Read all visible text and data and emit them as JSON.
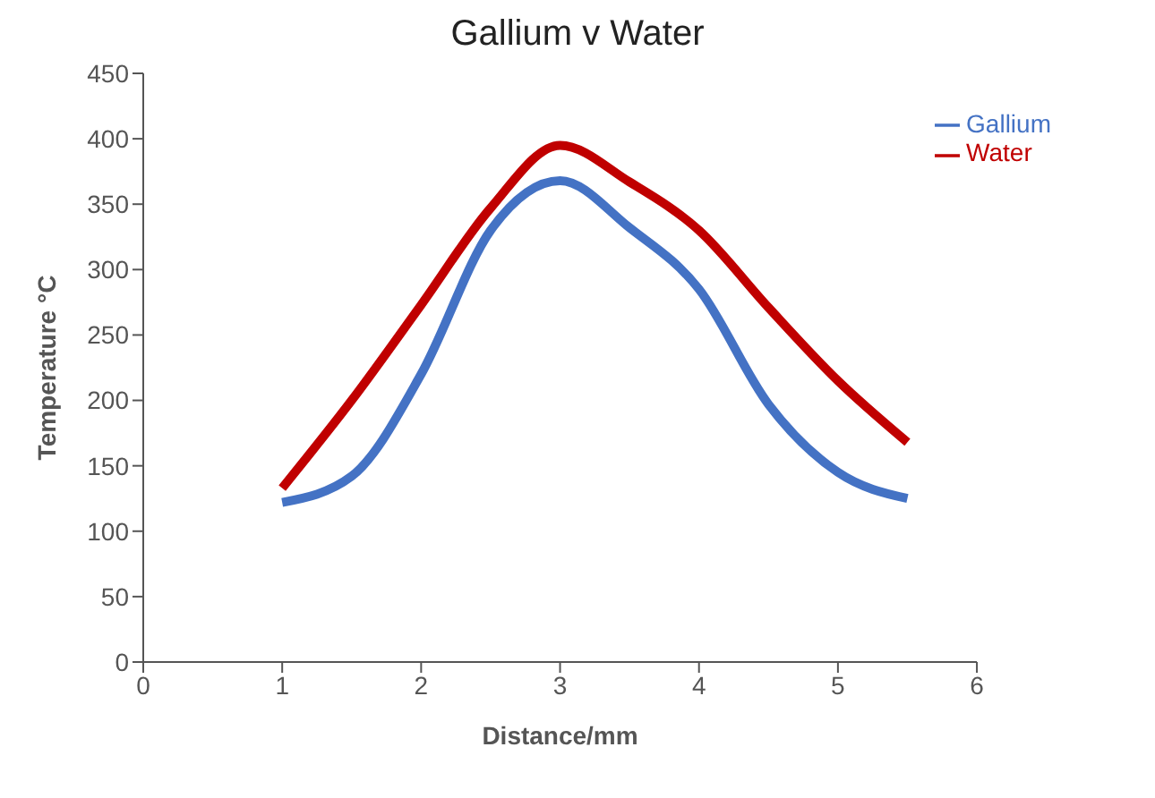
{
  "chart_data": {
    "type": "line",
    "title": "Gallium v Water",
    "xlabel": "Distance/mm",
    "ylabel": "Temperature °C",
    "x": [
      1,
      1.5,
      2,
      2.5,
      3,
      3.5,
      4,
      4.5,
      5,
      5.5
    ],
    "series": [
      {
        "name": "Gallium",
        "color": "#4472c4",
        "values": [
          122,
          142,
          220,
          330,
          368,
          332,
          285,
          197,
          145,
          125
        ]
      },
      {
        "name": "Water",
        "color": "#c00000",
        "values": [
          133,
          200,
          273,
          347,
          395,
          367,
          330,
          271,
          215,
          168
        ]
      }
    ],
    "xlim": [
      0,
      6
    ],
    "xticks": [
      0,
      1,
      2,
      3,
      4,
      5,
      6
    ],
    "ylim": [
      0,
      450
    ],
    "yticks": [
      0,
      50,
      100,
      150,
      200,
      250,
      300,
      350,
      400,
      450
    ],
    "grid": false,
    "legend": "top right",
    "marker": "none",
    "line_style": "solid"
  }
}
